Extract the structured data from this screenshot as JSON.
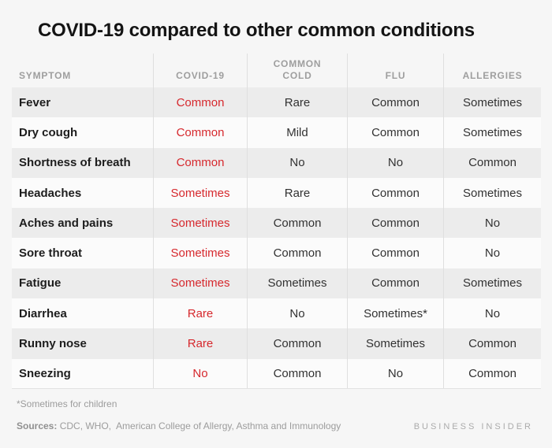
{
  "title": "COVID-19 compared to other common conditions",
  "colors": {
    "background": "#f6f6f6",
    "row_shade": "#ececec",
    "row_light": "#fbfbfb",
    "divider": "#dfdfdf",
    "header_text": "#9e9e9e",
    "accent_red": "#d6282d"
  },
  "table": {
    "headers": [
      "SYMPTOM",
      "COVID-19",
      "COMMON\nCOLD",
      "FLU",
      "ALLERGIES"
    ],
    "rows": [
      {
        "symptom": "Fever",
        "values": [
          "Common",
          "Rare",
          "Common",
          "Sometimes"
        ]
      },
      {
        "symptom": "Dry cough",
        "values": [
          "Common",
          "Mild",
          "Common",
          "Sometimes"
        ]
      },
      {
        "symptom": "Shortness of breath",
        "values": [
          "Common",
          "No",
          "No",
          "Common"
        ]
      },
      {
        "symptom": "Headaches",
        "values": [
          "Sometimes",
          "Rare",
          "Common",
          "Sometimes"
        ]
      },
      {
        "symptom": "Aches and pains",
        "values": [
          "Sometimes",
          "Common",
          "Common",
          "No"
        ]
      },
      {
        "symptom": "Sore throat",
        "values": [
          "Sometimes",
          "Common",
          "Common",
          "No"
        ]
      },
      {
        "symptom": "Fatigue",
        "values": [
          "Sometimes",
          "Sometimes",
          "Common",
          "Sometimes"
        ]
      },
      {
        "symptom": "Diarrhea",
        "values": [
          "Rare",
          "No",
          "Sometimes*",
          "No"
        ]
      },
      {
        "symptom": "Runny nose",
        "values": [
          "Rare",
          "Common",
          "Sometimes",
          "Common"
        ]
      },
      {
        "symptom": "Sneezing",
        "values": [
          "No",
          "Common",
          "No",
          "Common"
        ]
      }
    ]
  },
  "footnote": "*Sometimes for children",
  "sources": {
    "label": "Sources:",
    "text": " CDC, WHO,  American College of Allergy, Asthma and Immunology"
  },
  "brand": "BUSINESS INSIDER",
  "chart_data": {
    "type": "table",
    "title": "COVID-19 compared to other common conditions",
    "columns": [
      "SYMPTOM",
      "COVID-19",
      "COMMON COLD",
      "FLU",
      "ALLERGIES"
    ],
    "rows": [
      [
        "Fever",
        "Common",
        "Rare",
        "Common",
        "Sometimes"
      ],
      [
        "Dry cough",
        "Common",
        "Mild",
        "Common",
        "Sometimes"
      ],
      [
        "Shortness of breath",
        "Common",
        "No",
        "No",
        "Common"
      ],
      [
        "Headaches",
        "Sometimes",
        "Rare",
        "Common",
        "Sometimes"
      ],
      [
        "Aches and pains",
        "Sometimes",
        "Common",
        "Common",
        "No"
      ],
      [
        "Sore throat",
        "Sometimes",
        "Common",
        "Common",
        "No"
      ],
      [
        "Fatigue",
        "Sometimes",
        "Sometimes",
        "Common",
        "Sometimes"
      ],
      [
        "Diarrhea",
        "Rare",
        "No",
        "Sometimes*",
        "No"
      ],
      [
        "Runny nose",
        "Rare",
        "Common",
        "Sometimes",
        "Common"
      ],
      [
        "Sneezing",
        "No",
        "Common",
        "No",
        "Common"
      ]
    ],
    "highlight_column": "COVID-19",
    "highlight_color": "#d6282d",
    "footnote": "*Sometimes for children",
    "source_note": "Sources: CDC, WHO,  American College of Allergy, Asthma and Immunology"
  }
}
